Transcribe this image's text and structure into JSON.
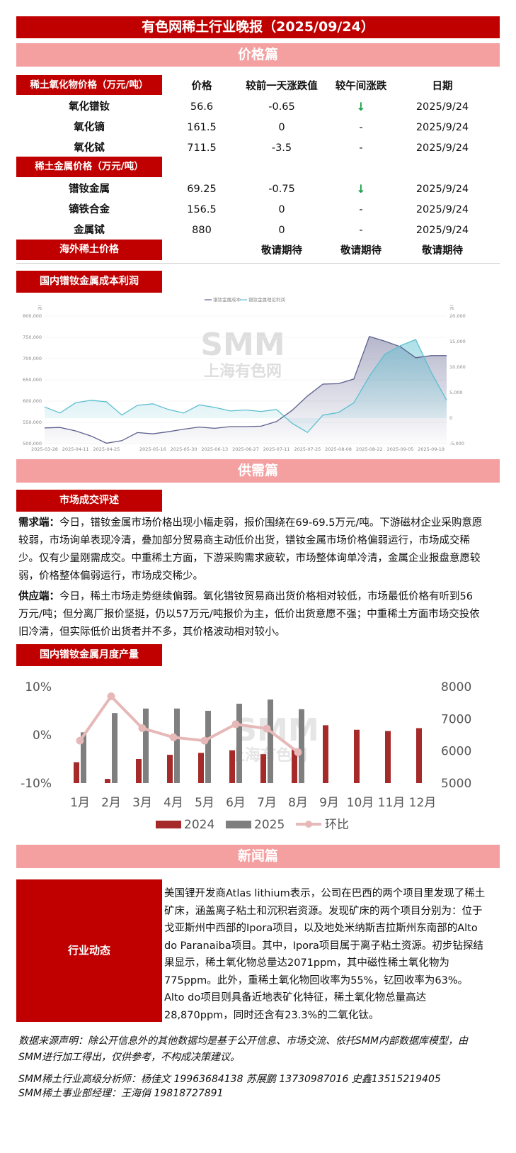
{
  "title": "有色网稀土行业晚报（2025/09/24）",
  "sections": {
    "price": "价格篇",
    "supply": "供需篇",
    "news": "新闻篇"
  },
  "price_table": {
    "headers": {
      "oxide_group": "稀土氧化物价格（万元/吨）",
      "price": "价格",
      "daily_change": "较前一天涨跌值",
      "noon_change": "较午间涨跌",
      "date": "日期"
    },
    "oxides": [
      {
        "name": "氧化镨钕",
        "price": "56.6",
        "change": "-0.65",
        "noon": "↓",
        "date": "2025/9/24"
      },
      {
        "name": "氧化镝",
        "price": "161.5",
        "change": "0",
        "noon": "-",
        "date": "2025/9/24"
      },
      {
        "name": "氧化铽",
        "price": "711.5",
        "change": "-3.5",
        "noon": "-",
        "date": "2025/9/24"
      }
    ],
    "metal_group": "稀土金属价格（万元/吨）",
    "metals": [
      {
        "name": "镨钕金属",
        "price": "69.25",
        "change": "-0.75",
        "noon": "↓",
        "date": "2025/9/24"
      },
      {
        "name": "镝铁合金",
        "price": "156.5",
        "change": "0",
        "noon": "-",
        "date": "2025/9/24"
      },
      {
        "name": "金属铽",
        "price": "880",
        "change": "0",
        "noon": "-",
        "date": "2025/9/24"
      }
    ],
    "overseas": {
      "label": "海外稀土价格",
      "values": [
        "敬请期待",
        "敬请期待",
        "敬请期待"
      ]
    }
  },
  "cost_chart": {
    "label": "国内镨钕金属成本利润",
    "legend": [
      "镨钕金属成本",
      "镨钕金属理论利润"
    ],
    "left_unit": "元",
    "right_unit": "元",
    "colors": {
      "cost": "#5c5f8c",
      "profit": "#5bbfd0"
    },
    "watermark_top": "SMM",
    "watermark_bottom": "上海有色网"
  },
  "chart_data": [
    {
      "type": "area",
      "title": "",
      "x": [
        "2025-03-28",
        "2025-04-04",
        "2025-04-11",
        "2025-04-18",
        "2025-04-25",
        "2025-05-02",
        "2025-05-09",
        "2025-05-16",
        "2025-05-23",
        "2025-05-30",
        "2025-06-06",
        "2025-06-13",
        "2025-06-20",
        "2025-06-27",
        "2025-07-04",
        "2025-07-11",
        "2025-07-18",
        "2025-07-25",
        "2025-08-01",
        "2025-08-08",
        "2025-08-15",
        "2025-08-22",
        "2025-08-29",
        "2025-09-05",
        "2025-09-12",
        "2025-09-19",
        "2025-09-24"
      ],
      "x_ticks": [
        "2025-03-28",
        "2025-04-11",
        "2025-04-25",
        "2025-05-16",
        "2025-05-30",
        "2025-06-13",
        "2025-06-27",
        "2025-07-11",
        "2025-07-25",
        "2025-08-08",
        "2025-08-22",
        "2025-09-05",
        "2025-09-19"
      ],
      "y_left_ticks": [
        "500,000",
        "550,000",
        "600,000",
        "650,000",
        "700,000",
        "750,000",
        "800,000"
      ],
      "y_right_ticks": [
        "-5,000",
        "0",
        "5,000",
        "10,000",
        "15,000",
        "20,000"
      ],
      "ylim_left": [
        500000,
        800000
      ],
      "ylim_right": [
        -5000,
        20000
      ],
      "series": [
        {
          "name": "镨钕金属成本",
          "axis": "left",
          "values": [
            537000,
            538000,
            530000,
            518000,
            501000,
            507000,
            526000,
            523000,
            528000,
            534000,
            539000,
            536000,
            540000,
            540000,
            541000,
            552000,
            578000,
            612000,
            640000,
            641000,
            652000,
            752000,
            741000,
            728000,
            702000,
            707000,
            707000
          ]
        },
        {
          "name": "镨钕金属理论利润",
          "axis": "right",
          "values": [
            2200,
            1000,
            3000,
            3500,
            3200,
            600,
            2500,
            2800,
            1700,
            1000,
            2600,
            2100,
            1400,
            1600,
            1300,
            1700,
            -1000,
            -2800,
            600,
            1100,
            3000,
            8200,
            12500,
            14200,
            15400,
            9000,
            3500
          ]
        }
      ]
    },
    {
      "type": "bar",
      "title": "",
      "categories": [
        "1月",
        "2月",
        "3月",
        "4月",
        "5月",
        "6月",
        "7月",
        "8月",
        "9月",
        "10月",
        "11月",
        "12月"
      ],
      "ylim_left": [
        -10,
        10
      ],
      "ylim_right": [
        5000,
        8000
      ],
      "y_left_ticks": [
        "10%",
        "0%",
        "-10%"
      ],
      "y_right_ticks": [
        "8000",
        "7000",
        "6000",
        "5000"
      ],
      "series": [
        {
          "name": "2024",
          "type": "bar",
          "axis": "right",
          "values": [
            5650,
            5130,
            5750,
            5880,
            5940,
            6020,
            5900,
            6060,
            6800,
            6660,
            6620,
            6710
          ]
        },
        {
          "name": "2025",
          "type": "bar",
          "axis": "right",
          "values": [
            6580,
            7180,
            7320,
            7320,
            7250,
            7470,
            7600,
            7300,
            null,
            null,
            null,
            null
          ]
        },
        {
          "name": "环比",
          "type": "line",
          "axis": "left",
          "values": [
            -1.2,
            8.0,
            1.4,
            -0.5,
            -1.2,
            2.2,
            1.3,
            -3.6,
            null,
            null,
            null,
            null
          ]
        }
      ]
    }
  ],
  "monthly_chart": {
    "label": "国内镨钕金属月度产量",
    "legend": [
      "2024",
      "2025",
      "环比"
    ],
    "colors": {
      "y2024": "#a52a2a",
      "y2025": "#7f7f7f",
      "mom": "#e6b8b7"
    }
  },
  "market": {
    "label": "市场成交评述",
    "demand_title": "需求端：",
    "demand_text": "今日，镨钕金属市场价格出现小幅走弱，报价围绕在69-69.5万元/吨。下游磁材企业采购意愿较弱，市场询单表现冷清，叠加部分贸易商主动低价出货，镨钕金属市场价格偏弱运行，市场成交稀少。仅有少量刚需成交。中重稀土方面，下游采购需求疲软，市场整体询单冷清，金属企业报盘意愿较弱，价格整体偏弱运行，市场成交稀少。",
    "supply_title": "供应端：",
    "supply_text": "今日，稀土市场走势继续偏弱。氧化镨钕贸易商出货价格相对较低，市场最低价格有听到56万元/吨；但分离厂报价坚挺，仍以57万元/吨报价为主，低价出货意愿不强；中重稀土方面市场交投依旧冷清，但实际低价出货者并不多，其价格波动相对较小。"
  },
  "news": {
    "label": "行业动态",
    "text": "美国锂开发商Atlas lithium表示，公司在巴西的两个项目里发现了稀土矿床，涵盖离子粘土和沉积岩资源。发现矿床的两个项目分别为：位于戈亚斯州中西部的Ipora项目，以及地处米纳斯吉拉斯州东南部的Alto do Paranaiba项目。其中，Ipora项目属于离子粘土资源。初步钻探结果显示，稀土氧化物总量达2071ppm，其中磁性稀土氧化物为775ppm。此外，重稀土氧化物回收率为55%，钇回收率为63%。Alto do项目则具备近地表矿化特征，稀土氧化物总量高达28,870ppm，同时还含有23.3%的二氧化钛。"
  },
  "footer": {
    "disclaimer": "数据来源声明：除公开信息外的其他数据均是基于公开信息、市场交流、依托SMM内部数据库模型，由SMM进行加工得出，仅供参考，不构成决策建议。",
    "analysts": "SMM稀土行业高级分析师：杨佳文 19963684138  苏展鹏 13730987016 史鑫13515219405",
    "manager": "SMM稀土事业部经理：王海俏 19818727891"
  }
}
